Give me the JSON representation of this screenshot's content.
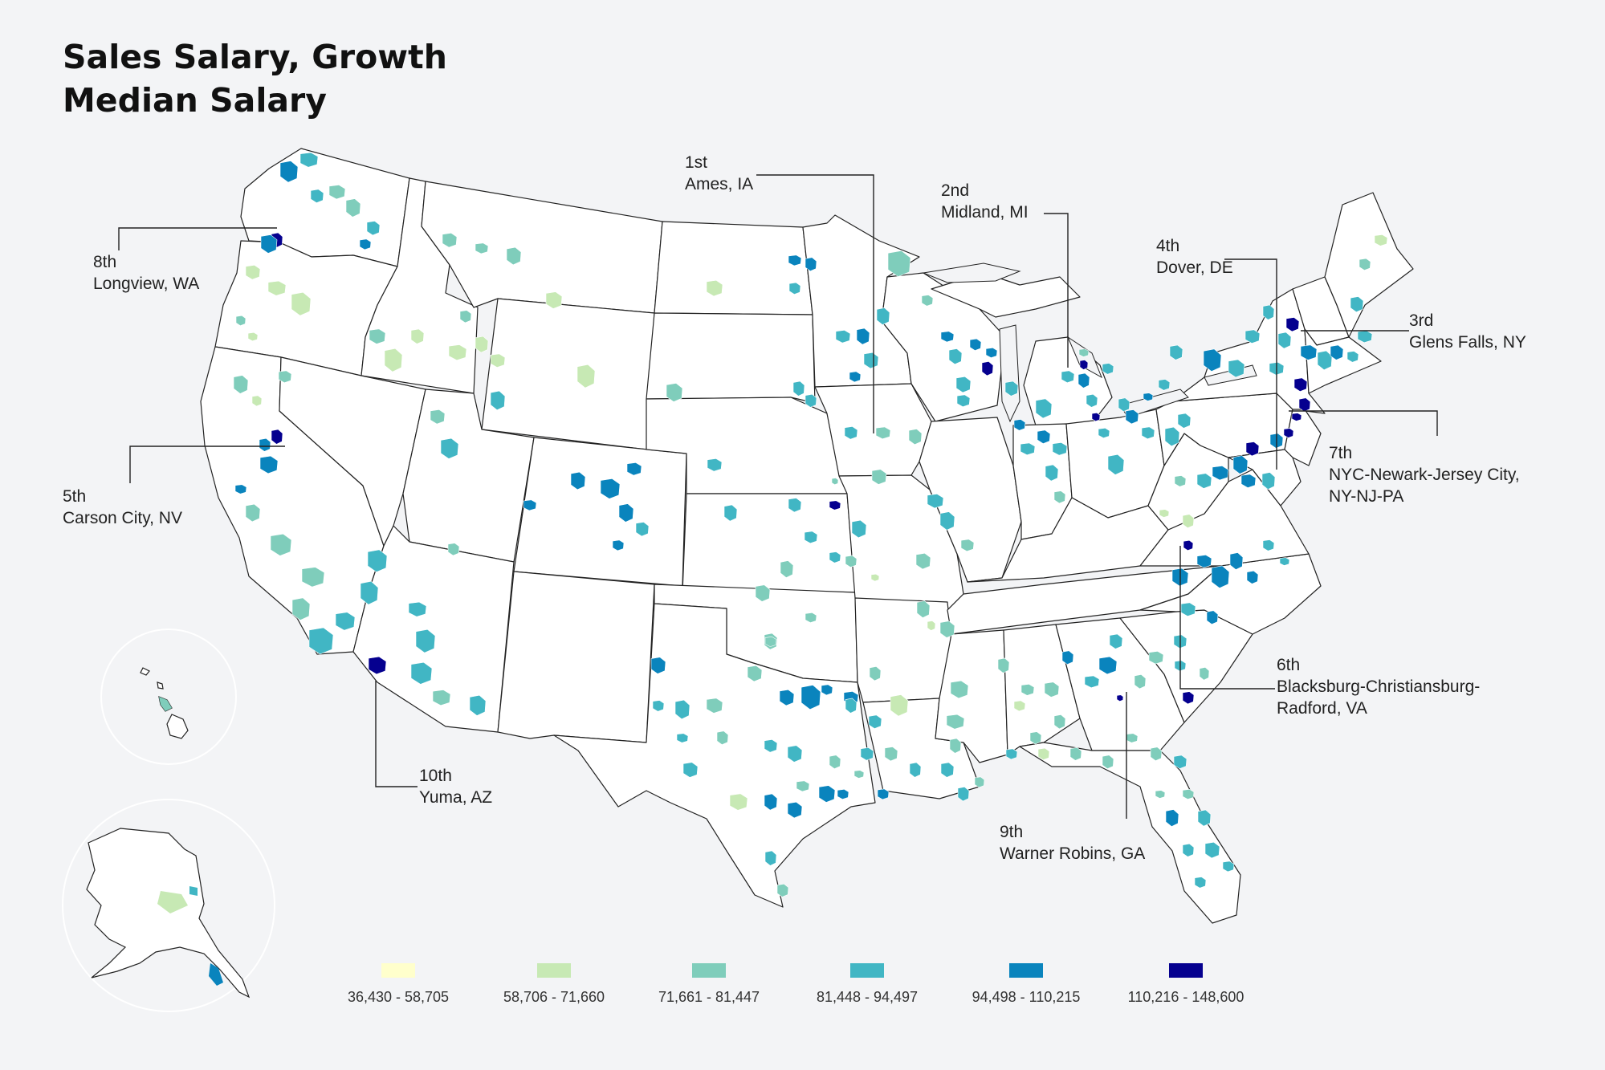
{
  "title": {
    "line1": "Sales Salary, Growth",
    "line2": "Median Salary"
  },
  "colors": {
    "background": "#f3f4f6",
    "state_fill": "#ffffff",
    "state_stroke": "#222222",
    "bins": [
      "#ffffcc",
      "#c7e9b4",
      "#7fcdbb",
      "#41b6c4",
      "#0a84bd",
      "#05008f"
    ]
  },
  "legend": [
    {
      "label": "36,430 - 58,705",
      "color": "#ffffcc"
    },
    {
      "label": "58,706 - 71,660",
      "color": "#c7e9b4"
    },
    {
      "label": "71,661 - 81,447",
      "color": "#7fcdbb"
    },
    {
      "label": "81,448 - 94,497",
      "color": "#41b6c4"
    },
    {
      "label": "94,498 - 110,215",
      "color": "#0a84bd"
    },
    {
      "label": "110,216 - 148,600",
      "color": "#05008f"
    }
  ],
  "rankings": [
    {
      "rank": "1st",
      "name": "Ames, IA"
    },
    {
      "rank": "2nd",
      "name": "Midland, MI"
    },
    {
      "rank": "3rd",
      "name": "Glens Falls, NY"
    },
    {
      "rank": "4th",
      "name": "Dover, DE"
    },
    {
      "rank": "5th",
      "name": "Carson City, NV"
    },
    {
      "rank": "6th",
      "name": "Blacksburg-Christiansburg-",
      "name2": "Radford, VA"
    },
    {
      "rank": "7th",
      "name": "NYC-Newark-Jersey City,",
      "name2": "NY-NJ-PA"
    },
    {
      "rank": "8th",
      "name": "Longview, WA"
    },
    {
      "rank": "9th",
      "name": "Warner Robins, GA"
    },
    {
      "rank": "10th",
      "name": "Yuma, AZ"
    }
  ]
}
